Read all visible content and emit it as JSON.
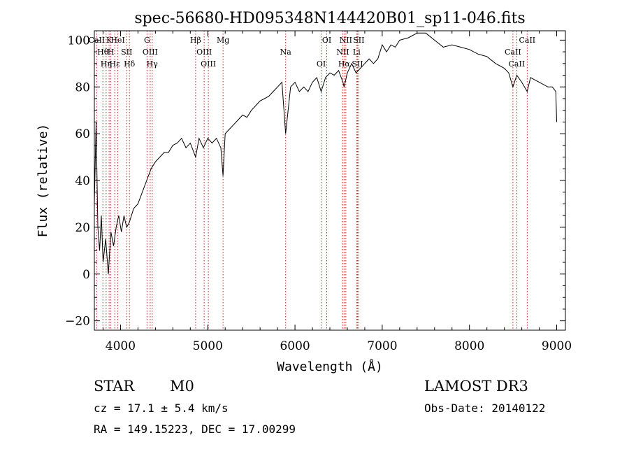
{
  "chart_data": {
    "type": "line",
    "title": "spec-56680-HD095348N144420B01_sp11-046.fits",
    "xlabel": "Wavelength (Å)",
    "ylabel": "Flux (relative)",
    "xlim": [
      3700,
      9100
    ],
    "ylim": [
      -24,
      104
    ],
    "xticks": [
      4000,
      5000,
      6000,
      7000,
      8000,
      9000
    ],
    "yticks": [
      -20,
      0,
      20,
      40,
      60,
      80,
      100
    ],
    "tick_labels_x": [
      "4000",
      "5000",
      "6000",
      "7000",
      "8000",
      "9000"
    ],
    "tick_labels_y": [
      "−20",
      "0",
      "20",
      "40",
      "60",
      "80",
      "100"
    ],
    "grid": false,
    "series": [
      {
        "name": "spectrum",
        "x": [
          3700,
          3720,
          3740,
          3760,
          3780,
          3800,
          3830,
          3860,
          3890,
          3920,
          3950,
          3980,
          4010,
          4040,
          4070,
          4100,
          4150,
          4200,
          4250,
          4300,
          4350,
          4400,
          4450,
          4500,
          4550,
          4600,
          4650,
          4700,
          4750,
          4800,
          4861,
          4900,
          4950,
          5000,
          5050,
          5100,
          5150,
          5175,
          5200,
          5250,
          5300,
          5350,
          5400,
          5450,
          5500,
          5550,
          5600,
          5650,
          5700,
          5750,
          5800,
          5850,
          5893,
          5950,
          6000,
          6050,
          6100,
          6150,
          6200,
          6250,
          6300,
          6350,
          6400,
          6450,
          6500,
          6550,
          6563,
          6600,
          6650,
          6700,
          6750,
          6800,
          6850,
          6900,
          6950,
          7000,
          7050,
          7100,
          7150,
          7200,
          7300,
          7400,
          7500,
          7600,
          7700,
          7800,
          7900,
          8000,
          8100,
          8200,
          8300,
          8400,
          8450,
          8498,
          8542,
          8600,
          8662,
          8700,
          8800,
          8900,
          8950,
          8990,
          9000
        ],
        "y": [
          30,
          65,
          20,
          10,
          25,
          5,
          15,
          0,
          18,
          12,
          20,
          25,
          18,
          25,
          20,
          22,
          28,
          30,
          35,
          40,
          45,
          48,
          50,
          52,
          52,
          55,
          56,
          58,
          54,
          56,
          50,
          58,
          54,
          58,
          56,
          58,
          54,
          42,
          60,
          62,
          64,
          66,
          68,
          67,
          70,
          72,
          74,
          75,
          76,
          78,
          80,
          82,
          60,
          80,
          82,
          78,
          80,
          78,
          82,
          84,
          78,
          84,
          86,
          85,
          87,
          82,
          80,
          86,
          90,
          86,
          88,
          90,
          92,
          90,
          92,
          98,
          95,
          98,
          97,
          100,
          101,
          103,
          103,
          100,
          97,
          98,
          97,
          96,
          94,
          93,
          90,
          88,
          86,
          80,
          85,
          82,
          78,
          84,
          82,
          80,
          80,
          78,
          65
        ]
      }
    ],
    "lines": [
      {
        "label": "CaII",
        "wl": 3727
      },
      {
        "label": "Hθ",
        "wl": 3798
      },
      {
        "label": "Hη",
        "wl": 3835
      },
      {
        "label": "K",
        "wl": 3869
      },
      {
        "label": "H",
        "wl": 3889
      },
      {
        "label": "Hε",
        "wl": 3934
      },
      {
        "label": "HeI",
        "wl": 3969
      },
      {
        "label": "SII",
        "wl": 4070
      },
      {
        "label": "Hδ",
        "wl": 4102
      },
      {
        "label": "G",
        "wl": 4304
      },
      {
        "label": "OIII",
        "wl": 4340
      },
      {
        "label": "Hγ",
        "wl": 4363
      },
      {
        "label": "Hβ",
        "wl": 4861
      },
      {
        "label": "OIII",
        "wl": 4959
      },
      {
        "label": "OIII",
        "wl": 5007
      },
      {
        "label": "Mg",
        "wl": 5175
      },
      {
        "label": "Na",
        "wl": 5893
      },
      {
        "label": "OI",
        "wl": 6300
      },
      {
        "label": "OI",
        "wl": 6364
      },
      {
        "label": "NII",
        "wl": 6548
      },
      {
        "label": "Hα",
        "wl": 6563
      },
      {
        "label": "NII",
        "wl": 6583
      },
      {
        "label": "Li",
        "wl": 6707
      },
      {
        "label": "SII",
        "wl": 6716
      },
      {
        "label": "SII",
        "wl": 6731
      },
      {
        "label": "CaII",
        "wl": 8498
      },
      {
        "label": "CaII",
        "wl": 8542
      },
      {
        "label": "CaII",
        "wl": 8662
      }
    ]
  },
  "info": {
    "class": "STAR",
    "subclass": "M0",
    "survey": "LAMOST DR3",
    "cz": "cz = 17.1 ± 5.4 km/s",
    "obs_date": "Obs-Date: 20140122",
    "coords": "RA = 149.15223, DEC =  17.00299"
  }
}
